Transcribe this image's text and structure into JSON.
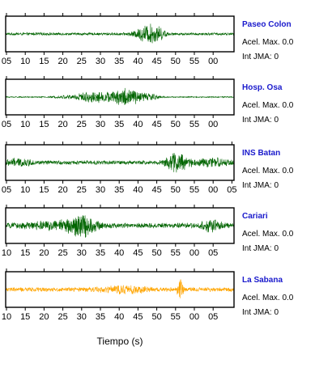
{
  "chart_data": {
    "type": "line",
    "xlabel": "Tiempo (s)",
    "panels": [
      {
        "name": "Paseo Colon",
        "accel_text": "Acel. Max. 0.0",
        "jma_text": "Int JMA: 0",
        "color": "#006400",
        "tick_labels": [
          "05",
          "10",
          "15",
          "20",
          "25",
          "30",
          "35",
          "40",
          "45",
          "50",
          "55",
          "00"
        ],
        "tick_labels_shown": true,
        "noise": 0.09,
        "bursts": [
          {
            "center": 0.62,
            "width": 0.05,
            "amp": 0.55
          },
          {
            "center": 0.67,
            "width": 0.03,
            "amp": 0.25
          }
        ]
      },
      {
        "name": "Hosp. Osa",
        "accel_text": "Acel. Max. 0.0",
        "jma_text": "Int JMA: 0",
        "color": "#006400",
        "tick_labels": [
          "05",
          "10",
          "15",
          "20",
          "25",
          "30",
          "35",
          "40",
          "45",
          "50",
          "55",
          "00"
        ],
        "tick_labels_shown": true,
        "noise": 0.04,
        "bursts": [
          {
            "center": 0.4,
            "width": 0.12,
            "amp": 0.35
          },
          {
            "center": 0.53,
            "width": 0.05,
            "amp": 0.55
          },
          {
            "center": 0.62,
            "width": 0.05,
            "amp": 0.25
          }
        ]
      },
      {
        "name": "INS Batan",
        "accel_text": "Acel. Max. 0.0",
        "jma_text": "Int JMA: 0",
        "color": "#006400",
        "tick_labels": [
          "05",
          "10",
          "15",
          "20",
          "25",
          "30",
          "35",
          "40",
          "45",
          "50",
          "55",
          "00",
          "05"
        ],
        "tick_labels_shown": true,
        "noise": 0.14,
        "bursts": [
          {
            "center": 0.05,
            "width": 0.06,
            "amp": 0.2
          },
          {
            "center": 0.75,
            "width": 0.045,
            "amp": 0.65
          },
          {
            "center": 0.9,
            "width": 0.08,
            "amp": 0.22
          }
        ]
      },
      {
        "name": "Cariari",
        "accel_text": "Acel. Max. 0.0",
        "jma_text": "Int JMA: 0",
        "color": "#006400",
        "tick_labels": [
          "10",
          "15",
          "20",
          "25",
          "30",
          "35",
          "40",
          "45",
          "50",
          "55",
          "00",
          "05"
        ],
        "tick_labels_shown": true,
        "noise": 0.17,
        "bursts": [
          {
            "center": 0.33,
            "width": 0.06,
            "amp": 0.65
          },
          {
            "center": 0.2,
            "width": 0.12,
            "amp": 0.18
          },
          {
            "center": 0.9,
            "width": 0.04,
            "amp": 0.35
          }
        ]
      },
      {
        "name": "La Sabana",
        "accel_text": "Acel. Max. 0.0",
        "jma_text": "Int JMA: 0",
        "color": "#ffa500",
        "tick_labels": [
          "10",
          "15",
          "20",
          "25",
          "30",
          "35",
          "40",
          "45",
          "50",
          "55",
          "00",
          "05"
        ],
        "tick_labels_shown": true,
        "noise": 0.15,
        "bursts": [
          {
            "center": 0.52,
            "width": 0.1,
            "amp": 0.18
          },
          {
            "center": 0.765,
            "width": 0.012,
            "amp": 0.7
          }
        ]
      }
    ]
  }
}
